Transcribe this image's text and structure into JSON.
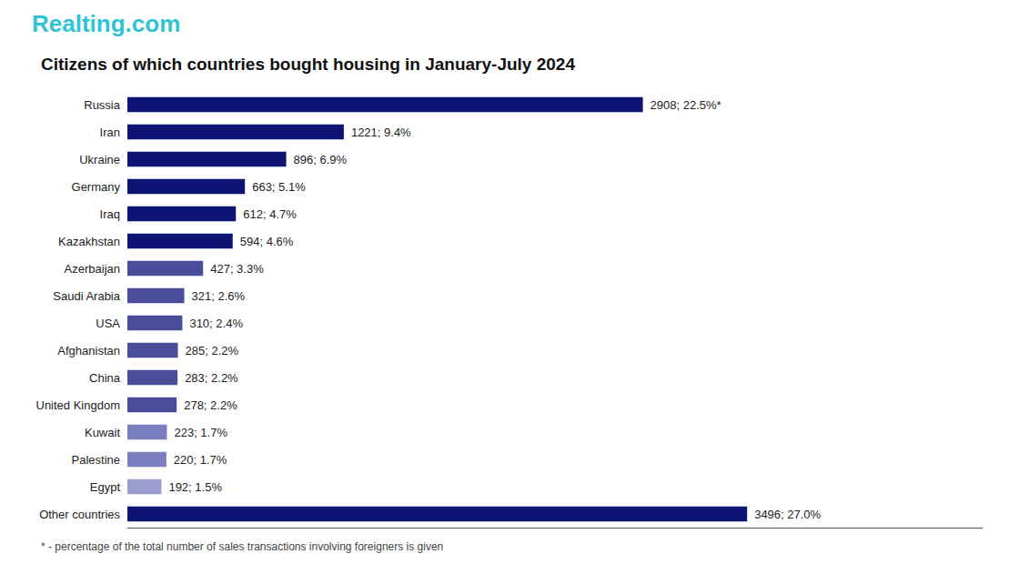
{
  "chart_data": {
    "type": "bar",
    "orientation": "horizontal",
    "title": "Citizens of which countries bought housing in January-July 2024",
    "annotations": [
      {
        "text": "Realting.com",
        "color": "#2ec4d6"
      },
      {
        "text": "* - percentage of the total number of sales transactions involving foreigners is given"
      }
    ],
    "categories": [
      "Russia",
      "Iran",
      "Ukraine",
      "Germany",
      "Iraq",
      "Kazakhstan",
      "Azerbaijan",
      "Saudi Arabia",
      "USA",
      "Afghanistan",
      "China",
      "United Kingdom",
      "Kuwait",
      "Palestine",
      "Egypt",
      "Other countries"
    ],
    "values": [
      2908,
      1221,
      896,
      663,
      612,
      594,
      427,
      321,
      310,
      285,
      283,
      278,
      223,
      220,
      192,
      3496
    ],
    "value_labels": [
      "2908; 22.5%*",
      "1221; 9.4%",
      "896; 6.9%",
      "663; 5.1%",
      "612; 4.7%",
      "594; 4.6%",
      "427; 3.3%",
      "321; 2.6%",
      "310; 2.4%",
      "285; 2.2%",
      "283; 2.2%",
      "278; 2.2%",
      "223; 1.7%",
      "220; 1.7%",
      "192; 1.5%",
      "3496; 27.0%"
    ],
    "data_labels": true,
    "colors": [
      "#0d1474",
      "#0d1474",
      "#0d1474",
      "#0d1474",
      "#0d1474",
      "#0d1474",
      "#4a4e9a",
      "#4a4e9a",
      "#4a4e9a",
      "#4a4e9a",
      "#4a4e9a",
      "#4a4e9a",
      "#7b7fbf",
      "#7b7fbf",
      "#9b9fcf",
      "#0d1474"
    ],
    "xlim": [
      0,
      4824.48
    ],
    "tick_labels": "y",
    "grid": false
  }
}
